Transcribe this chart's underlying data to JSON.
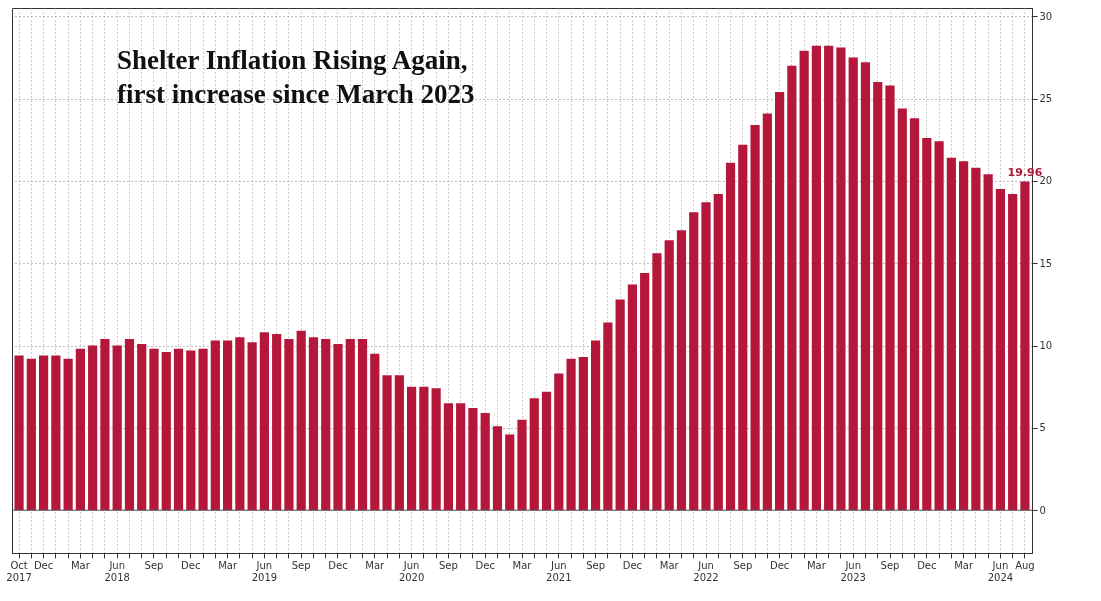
{
  "chart_data": {
    "type": "bar",
    "title": "Shelter Inflation Rising Again, first increase since March 2023",
    "categories": [
      "Oct 2017",
      null,
      "Dec",
      null,
      null,
      "Mar",
      null,
      null,
      "Jun 2018",
      null,
      null,
      "Sep",
      null,
      null,
      "Dec",
      null,
      null,
      "Mar",
      null,
      null,
      "Jun 2019",
      null,
      null,
      "Sep",
      null,
      null,
      "Dec",
      null,
      null,
      "Mar",
      null,
      null,
      "Jun 2020",
      null,
      null,
      "Sep",
      null,
      null,
      "Dec",
      null,
      null,
      "Mar",
      null,
      null,
      "Jun 2021",
      null,
      null,
      "Sep",
      null,
      null,
      "Dec",
      null,
      null,
      "Mar",
      null,
      null,
      "Jun 2022",
      null,
      null,
      "Sep",
      null,
      null,
      "Dec",
      null,
      null,
      "Mar",
      null,
      null,
      "Jun 2023",
      null,
      null,
      "Sep",
      null,
      null,
      "Dec",
      null,
      null,
      "Mar",
      null,
      null,
      "Jun 2024",
      null,
      "Aug"
    ],
    "values": [
      9.4,
      9.2,
      9.4,
      9.4,
      9.2,
      9.8,
      10.0,
      10.4,
      10.0,
      10.4,
      10.1,
      9.8,
      9.6,
      9.8,
      9.7,
      9.8,
      10.3,
      10.3,
      10.5,
      10.2,
      10.8,
      10.7,
      10.4,
      10.9,
      10.5,
      10.4,
      10.1,
      10.4,
      10.4,
      9.5,
      8.2,
      8.2,
      7.5,
      7.5,
      7.4,
      6.5,
      6.5,
      6.2,
      5.9,
      5.1,
      4.6,
      5.5,
      6.8,
      7.2,
      8.3,
      9.2,
      9.3,
      10.3,
      11.4,
      12.8,
      13.7,
      14.4,
      15.6,
      16.4,
      17.0,
      18.1,
      18.7,
      19.2,
      21.1,
      22.2,
      23.4,
      24.1,
      25.4,
      27.0,
      27.9,
      28.2,
      28.2,
      28.1,
      27.5,
      27.2,
      26.0,
      25.8,
      24.4,
      23.8,
      22.6,
      22.4,
      21.4,
      21.2,
      20.8,
      20.4,
      19.5,
      19.2,
      19.96
    ],
    "value_labels": [
      null,
      null,
      null,
      null,
      null,
      null,
      null,
      null,
      null,
      null,
      null,
      null,
      null,
      null,
      null,
      null,
      null,
      null,
      null,
      null,
      null,
      null,
      null,
      null,
      null,
      null,
      null,
      null,
      null,
      null,
      null,
      null,
      null,
      null,
      null,
      null,
      null,
      null,
      null,
      null,
      null,
      null,
      null,
      null,
      null,
      null,
      null,
      null,
      null,
      null,
      null,
      null,
      null,
      null,
      null,
      null,
      null,
      null,
      null,
      null,
      null,
      null,
      null,
      null,
      null,
      null,
      null,
      null,
      null,
      null,
      null,
      null,
      null,
      null,
      null,
      null,
      null,
      null,
      null,
      null,
      null,
      null,
      "19.96"
    ],
    "color": "#b5173a",
    "ylim": [
      -2.6,
      30.5
    ],
    "yticks": [
      0,
      5,
      10,
      15,
      20,
      25,
      30
    ],
    "grid": true
  }
}
